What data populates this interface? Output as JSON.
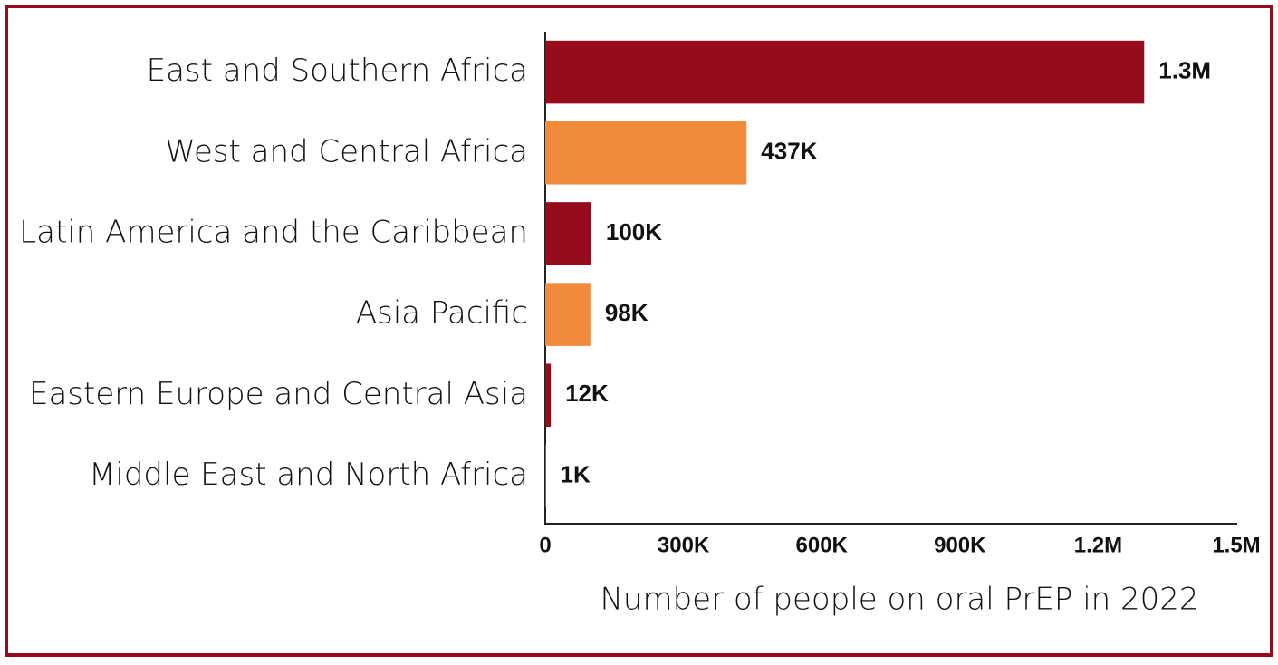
{
  "chart_data": {
    "type": "bar",
    "orientation": "horizontal",
    "x_label": "Number of people on oral PrEP in 2022",
    "categories": [
      "East and Southern Africa",
      "West and Central Africa",
      "Latin America and the Caribbean",
      "Asia Pacific",
      "Eastern Europe and Central Asia",
      "Middle East and North Africa"
    ],
    "values": [
      1300000,
      437000,
      100000,
      98000,
      12000,
      1000
    ],
    "value_labels": [
      "1.3M",
      "437K",
      "100K",
      "98K",
      "12K",
      "1K"
    ],
    "colors": [
      "#960c1c",
      "#f28a3c",
      "#960c1c",
      "#f28a3c",
      "#960c1c",
      "#f28a3c"
    ],
    "xlim": [
      0,
      1500000
    ],
    "xticks": [
      0,
      {
        "value": 300000,
        "label": "300K"
      },
      {
        "value": 600000,
        "label": "600K"
      },
      {
        "value": 900000,
        "label": "900K"
      },
      {
        "value": 1200000,
        "label": "1.2M"
      },
      {
        "value": 1500000,
        "label": "1.5M"
      }
    ],
    "grid": false
  }
}
